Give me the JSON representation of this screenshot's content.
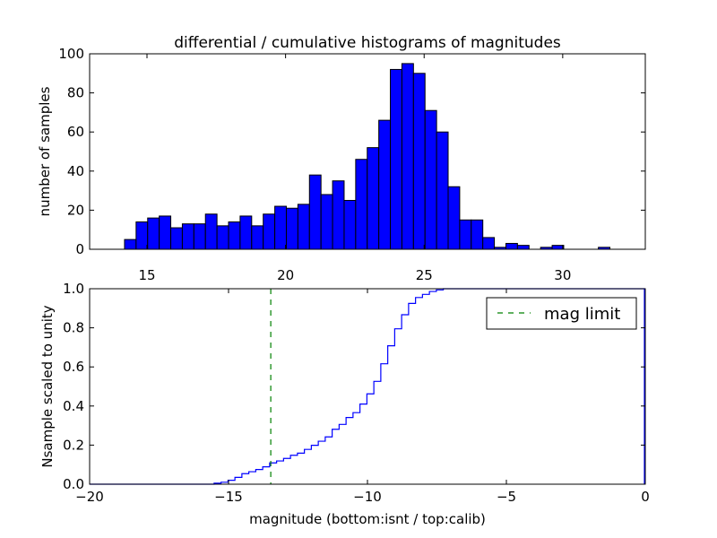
{
  "chart_data": [
    {
      "type": "bar",
      "title": "differential / cumulative histograms of magnitudes",
      "xlabel": "",
      "ylabel": "number of samples",
      "xlim": [
        12.93,
        32.98
      ],
      "ylim": [
        0,
        100
      ],
      "xticks": [
        15,
        20,
        25,
        30
      ],
      "yticks": [
        0,
        20,
        40,
        60,
        80,
        100
      ],
      "bin_start": 14.19,
      "bin_width": 0.417,
      "values": [
        5,
        14,
        16,
        17,
        11,
        13,
        13,
        18,
        12,
        14,
        17,
        12,
        18,
        22,
        21,
        23,
        38,
        28,
        35,
        25,
        46,
        52,
        66,
        92,
        95,
        90,
        71,
        60,
        32,
        15,
        15,
        6,
        1,
        3,
        2,
        0,
        1,
        2,
        0,
        0,
        0,
        1
      ],
      "color": "#0000ff",
      "grid": false
    },
    {
      "type": "line",
      "style": "step",
      "title": "",
      "xlabel": "magnitude (bottom:isnt / top:calib)",
      "ylabel": "Nsample scaled to unity",
      "xlim": [
        -20,
        0
      ],
      "ylim": [
        0,
        1
      ],
      "xticks": [
        -20,
        -15,
        -10,
        -5,
        0
      ],
      "yticks": [
        0.0,
        0.2,
        0.4,
        0.6,
        0.8,
        1.0
      ],
      "step_start": -15.52,
      "step_width": 0.25,
      "cumulative": [
        0.005,
        0.01,
        0.02,
        0.035,
        0.054,
        0.064,
        0.075,
        0.089,
        0.109,
        0.119,
        0.132,
        0.148,
        0.159,
        0.178,
        0.199,
        0.22,
        0.242,
        0.281,
        0.306,
        0.341,
        0.366,
        0.41,
        0.462,
        0.526,
        0.616,
        0.708,
        0.795,
        0.867,
        0.925,
        0.955,
        0.971,
        0.986,
        0.994,
        1.0
      ],
      "line_color": "#0000ff",
      "mag_limit": -13.48,
      "mag_limit_color": "#008000",
      "legend": {
        "label": "mag limit",
        "placement": "top-right"
      },
      "grid": false
    }
  ]
}
